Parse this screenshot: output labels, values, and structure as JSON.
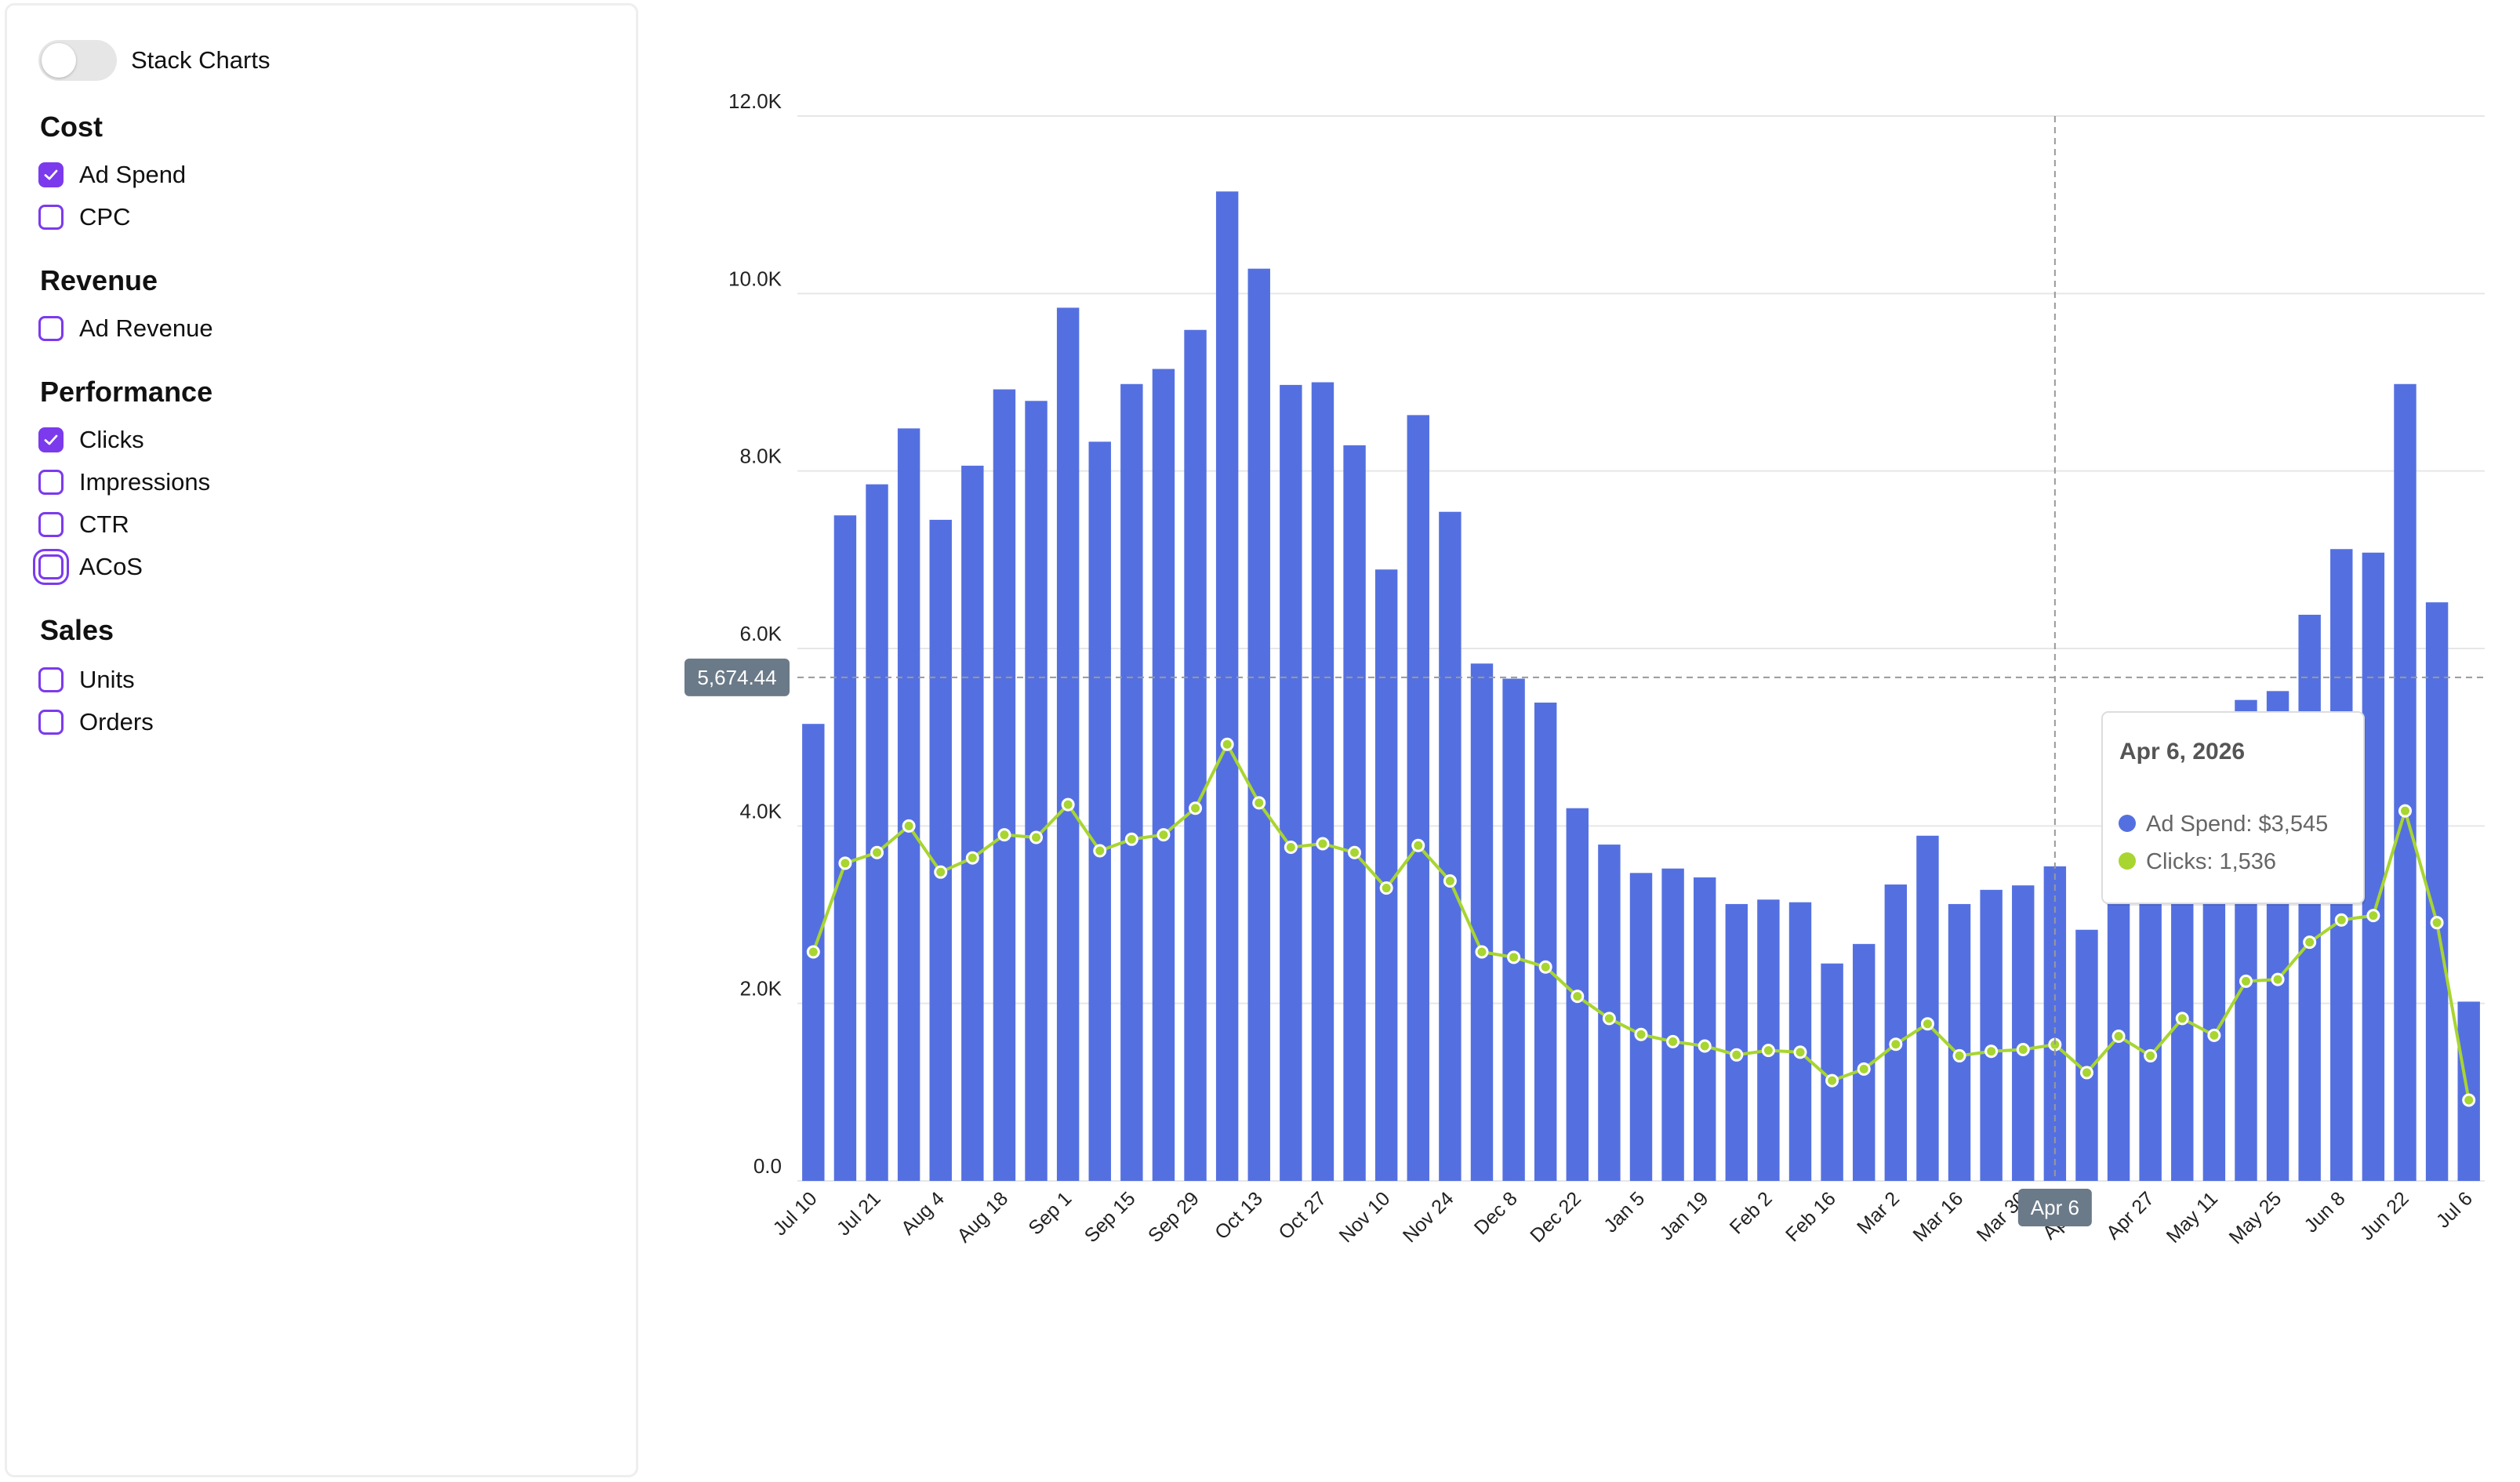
{
  "controls": {
    "stack_charts_label": "Stack Charts",
    "stack_charts_on": false,
    "groups": [
      {
        "title": "Cost",
        "options": [
          {
            "label": "Ad Spend",
            "checked": true
          },
          {
            "label": "CPC",
            "checked": false
          }
        ]
      },
      {
        "title": "Revenue",
        "options": [
          {
            "label": "Ad Revenue",
            "checked": false
          }
        ]
      },
      {
        "title": "Performance",
        "options": [
          {
            "label": "Clicks",
            "checked": true
          },
          {
            "label": "Impressions",
            "checked": false
          },
          {
            "label": "CTR",
            "checked": false
          },
          {
            "label": "ACoS",
            "checked": false,
            "focused": true
          }
        ]
      },
      {
        "title": "Sales",
        "options": [
          {
            "label": "Units",
            "checked": false
          },
          {
            "label": "Orders",
            "checked": false
          }
        ]
      }
    ]
  },
  "colors": {
    "accent": "#7c3aed",
    "ad_spend": "#5470e0",
    "clicks": "#a8d530",
    "grid": "#e6e6e6",
    "crosshair_badge": "#6b7a88"
  },
  "chart_data": {
    "type": "bar",
    "x": [
      "Jul 10",
      "Jul 14",
      "Jul 21",
      "Jul 28",
      "Aug 4",
      "Aug 11",
      "Aug 18",
      "Aug 25",
      "Sep 1",
      "Sep 8",
      "Sep 15",
      "Sep 22",
      "Sep 29",
      "Oct 6",
      "Oct 13",
      "Oct 20",
      "Oct 27",
      "Nov 3",
      "Nov 10",
      "Nov 17",
      "Nov 24",
      "Dec 1",
      "Dec 8",
      "Dec 15",
      "Dec 22",
      "Dec 29",
      "Jan 5",
      "Jan 12",
      "Jan 19",
      "Jan 26",
      "Feb 2",
      "Feb 9",
      "Feb 16",
      "Feb 23",
      "Mar 2",
      "Mar 9",
      "Mar 16",
      "Mar 23",
      "Mar 30",
      "Apr 6",
      "Apr 13",
      "Apr 20",
      "Apr 27",
      "May 4",
      "May 11",
      "May 18",
      "May 25",
      "Jun 1",
      "Jun 8",
      "Jun 15",
      "Jun 22",
      "Jun 29",
      "Jul 6"
    ],
    "x_tick_labels": [
      "Jul 10",
      "Jul 21",
      "Aug 4",
      "Aug 18",
      "Sep 1",
      "Sep 15",
      "Sep 29",
      "Oct 13",
      "Oct 27",
      "Nov 10",
      "Nov 24",
      "Dec 8",
      "Dec 22",
      "Jan 5",
      "Jan 19",
      "Feb 2",
      "Feb 16",
      "Mar 2",
      "Mar 16",
      "Mar 30",
      "Apr 13",
      "Apr 27",
      "May 11",
      "May 25",
      "Jun 8",
      "Jun 22",
      "Jul 6"
    ],
    "series": [
      {
        "name": "Ad Spend",
        "kind": "bar",
        "values": [
          5150,
          7500,
          7850,
          8480,
          7450,
          8060,
          8920,
          8790,
          9840,
          8330,
          8980,
          9150,
          9590,
          11150,
          10280,
          8970,
          9000,
          8290,
          6890,
          8630,
          7540,
          5830,
          5660,
          5390,
          4200,
          3790,
          3470,
          3520,
          3420,
          3120,
          3170,
          3140,
          2450,
          2670,
          3340,
          3890,
          3120,
          3280,
          3330,
          3545,
          2830,
          3500,
          3500,
          3500,
          3500,
          5420,
          5520,
          6380,
          7120,
          7080,
          8980,
          6520,
          2020
        ]
      },
      {
        "name": "Clicks",
        "kind": "line",
        "values": [
          2580,
          3580,
          3700,
          4000,
          3480,
          3640,
          3900,
          3870,
          4240,
          3720,
          3850,
          3900,
          4200,
          4920,
          4260,
          3760,
          3800,
          3700,
          3300,
          3780,
          3380,
          2580,
          2520,
          2410,
          2080,
          1830,
          1650,
          1570,
          1520,
          1420,
          1470,
          1450,
          1130,
          1260,
          1540,
          1770,
          1410,
          1460,
          1480,
          1536,
          1220,
          1630,
          1410,
          1830,
          1640,
          2250,
          2270,
          2690,
          2940,
          2990,
          4170,
          2910,
          910
        ]
      }
    ],
    "ylim": [
      0,
      12000
    ],
    "y_ticks": [
      "0.0",
      "2.0K",
      "4.0K",
      "6.0K",
      "8.0K",
      "10.0K",
      "12.0K"
    ],
    "y_tick_values": [
      0,
      2000,
      4000,
      6000,
      8000,
      10000,
      12000
    ],
    "grid": true,
    "legend": "none",
    "hover": {
      "index": 39,
      "x_badge": "Apr 6",
      "y_value": 5674.44,
      "y_badge": "5,674.44",
      "tooltip_title": "Apr 6, 2026",
      "tooltip_lines": [
        "Ad Spend: $3,545",
        "Clicks: 1,536"
      ]
    }
  }
}
